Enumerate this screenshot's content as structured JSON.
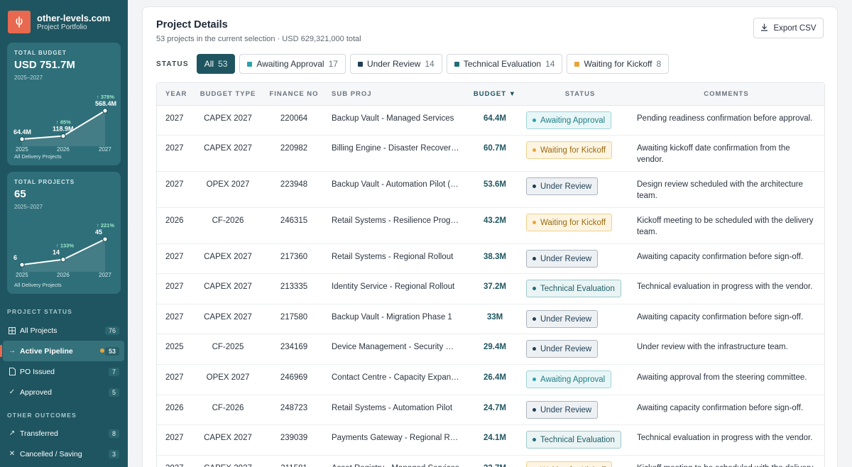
{
  "brand": {
    "name": "other-levels.com",
    "subtitle": "Project Portfolio"
  },
  "colors": {
    "sidebar": "#1f5560",
    "accent": "#e8694f",
    "await": "#2aa3ad",
    "kickoff": "#e8a53a",
    "review": "#1f3f55",
    "tech": "#1f6f78"
  },
  "budget_card": {
    "label": "TOTAL BUDGET",
    "value": "USD 751.7M",
    "range": "2025–2027",
    "footer": "All Delivery Projects",
    "chart_data": {
      "type": "line",
      "x": [
        "2025",
        "2026",
        "2027"
      ],
      "values": [
        64.4,
        118.9,
        568.4
      ],
      "value_labels": [
        "64.4M",
        "118.9M",
        "568.4M"
      ],
      "growth_labels": [
        "",
        "↑ 85%",
        "↑ 378%"
      ]
    }
  },
  "projects_card": {
    "label": "TOTAL PROJECTS",
    "value": "65",
    "range": "2025–2027",
    "footer": "All Delivery Projects",
    "chart_data": {
      "type": "line",
      "x": [
        "2025",
        "2026",
        "2027"
      ],
      "values": [
        6,
        14,
        45
      ],
      "value_labels": [
        "6",
        "14",
        "45"
      ],
      "growth_labels": [
        "",
        "↑ 133%",
        "↑ 221%"
      ]
    }
  },
  "nav": {
    "project_status_label": "PROJECT STATUS",
    "other_outcomes_label": "OTHER OUTCOMES",
    "items": [
      {
        "label": "All Projects",
        "count": "76",
        "icon": "grid-icon"
      },
      {
        "label": "Active Pipeline",
        "count": "53",
        "icon": "arrow-right-icon"
      },
      {
        "label": "PO Issued",
        "count": "7",
        "icon": "document-icon"
      },
      {
        "label": "Approved",
        "count": "5",
        "icon": "check-icon"
      },
      {
        "label": "Transferred",
        "count": "8",
        "icon": "arrow-up-right-icon"
      },
      {
        "label": "Cancelled / Saving",
        "count": "3",
        "icon": "x-icon"
      }
    ]
  },
  "main": {
    "title": "Project Details",
    "subtitle": "53 projects in the current selection · USD 629,321,000 total",
    "export_label": "Export CSV",
    "status_label": "STATUS",
    "filters": [
      {
        "label": "All",
        "count": "53"
      },
      {
        "label": "Awaiting Approval",
        "count": "17",
        "color": "#2aa3ad"
      },
      {
        "label": "Under Review",
        "count": "14",
        "color": "#1f3f55"
      },
      {
        "label": "Technical Evaluation",
        "count": "14",
        "color": "#1f6f78"
      },
      {
        "label": "Waiting for Kickoff",
        "count": "8",
        "color": "#e8a53a"
      }
    ],
    "columns": [
      "YEAR",
      "BUDGET TYPE",
      "FINANCE NO",
      "SUB PROJ",
      "BUDGET ▼",
      "STATUS",
      "COMMENTS"
    ],
    "rows": [
      {
        "year": "2027",
        "type": "CAPEX 2027",
        "fin": "220064",
        "sub": "Backup Vault - Managed Services",
        "budget": "64.4M",
        "status": "Awaiting Approval",
        "comment": "Pending readiness confirmation before approval."
      },
      {
        "year": "2027",
        "type": "CAPEX 2027",
        "fin": "220982",
        "sub": "Billing Engine - Disaster Recovery Upgrade",
        "budget": "60.7M",
        "status": "Waiting for Kickoff",
        "comment": "Awaiting kickoff date confirmation from the vendor."
      },
      {
        "year": "2027",
        "type": "OPEX 2027",
        "fin": "223948",
        "sub": "Backup Vault - Automation Pilot (North)",
        "budget": "53.6M",
        "status": "Under Review",
        "comment": "Design review scheduled with the architecture team."
      },
      {
        "year": "2026",
        "type": "CF-2026",
        "fin": "246315",
        "sub": "Retail Systems - Resilience Programme",
        "budget": "43.2M",
        "status": "Waiting for Kickoff",
        "comment": "Kickoff meeting to be scheduled with the delivery team."
      },
      {
        "year": "2027",
        "type": "CAPEX 2027",
        "fin": "217360",
        "sub": "Retail Systems - Regional Rollout",
        "budget": "38.3M",
        "status": "Under Review",
        "comment": "Awaiting capacity confirmation before sign-off."
      },
      {
        "year": "2027",
        "type": "CAPEX 2027",
        "fin": "213335",
        "sub": "Identity Service - Regional Rollout",
        "budget": "37.2M",
        "status": "Technical Evaluation",
        "comment": "Technical evaluation in progress with the vendor."
      },
      {
        "year": "2027",
        "type": "CAPEX 2027",
        "fin": "217580",
        "sub": "Backup Vault - Migration Phase 1",
        "budget": "33M",
        "status": "Under Review",
        "comment": "Awaiting capacity confirmation before sign-off."
      },
      {
        "year": "2025",
        "type": "CF-2025",
        "fin": "234169",
        "sub": "Device Management - Security Hardening",
        "budget": "29.4M",
        "status": "Under Review",
        "comment": "Under review with the infrastructure team."
      },
      {
        "year": "2027",
        "type": "OPEX 2027",
        "fin": "246969",
        "sub": "Contact Centre - Capacity Expansion",
        "budget": "26.4M",
        "status": "Awaiting Approval",
        "comment": "Awaiting approval from the steering committee."
      },
      {
        "year": "2026",
        "type": "CF-2026",
        "fin": "248723",
        "sub": "Retail Systems - Automation Pilot",
        "budget": "24.7M",
        "status": "Under Review",
        "comment": "Awaiting capacity confirmation before sign-off."
      },
      {
        "year": "2027",
        "type": "CAPEX 2027",
        "fin": "239039",
        "sub": "Payments Gateway - Regional Rollout",
        "budget": "24.1M",
        "status": "Technical Evaluation",
        "comment": "Technical evaluation in progress with the vendor."
      },
      {
        "year": "2027",
        "type": "CAPEX 2027",
        "fin": "211581",
        "sub": "Asset Registry - Managed Services",
        "budget": "23.7M",
        "status": "Waiting for Kickoff",
        "comment": "Kickoff meeting to be scheduled with the delivery team."
      }
    ]
  }
}
